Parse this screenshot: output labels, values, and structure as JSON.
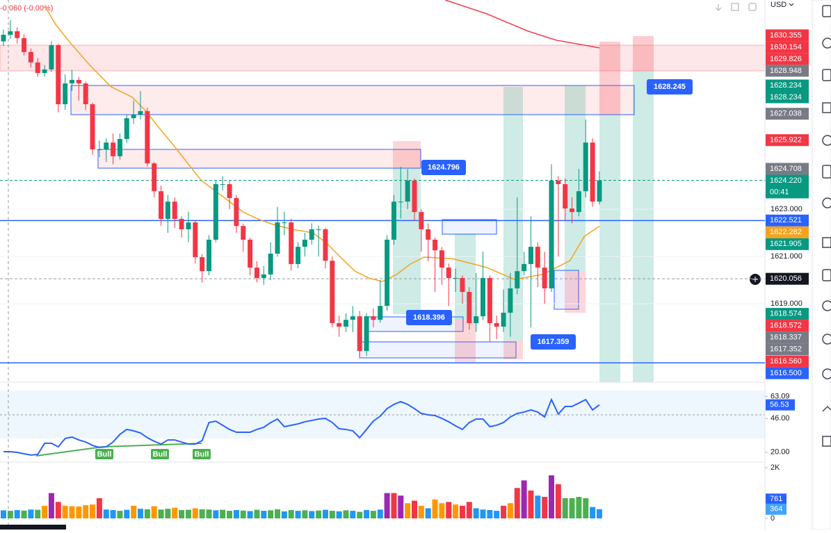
{
  "chart_data": [
    {
      "type": "candlestick",
      "subtitle": "-0.060 (-0.00%)",
      "currency": "USD",
      "ylim": [
        1615.74,
        1631.85
      ],
      "yticks": [
        {
          "value": 1623,
          "label": "1623.000"
        },
        {
          "value": 1621,
          "label": "1621.000"
        },
        {
          "value": 1619,
          "label": "1619.000"
        }
      ],
      "grid": true,
      "up_color": "#089981",
      "down_color": "#f23645",
      "open": [
        1630.1,
        1630.38,
        1630.53,
        1630.24,
        1629.65,
        1629.21,
        1628.76,
        1628.91,
        1629.94,
        1627.44,
        1628.32,
        1628.47,
        1628.32,
        1627.44,
        1625.53,
        1625.53,
        1625.82,
        1625.24,
        1625.97,
        1626.85,
        1627.0,
        1627.15,
        1624.94,
        1623.76,
        1622.59,
        1623.32,
        1622.59,
        1622.15,
        1622.44,
        1620.97,
        1620.38,
        1621.71,
        1624.06,
        1624.06,
        1623.47,
        1622.29,
        1621.71,
        1620.53,
        1620.09,
        1620.24,
        1621.12,
        1622.44,
        1622.44,
        1620.68,
        1621.41,
        1621.71,
        1622.15,
        1622.15,
        1620.82,
        1618.18,
        1618.03,
        1618.32,
        1618.47,
        1617.0,
        1618.47,
        1618.32,
        1618.91,
        1621.71,
        1623.32,
        1623.32,
        1624.21,
        1622.88,
        1622.15,
        1621.71,
        1621.26,
        1620.53,
        1620.09,
        1620.09,
        1619.5,
        1618.18,
        1618.47,
        1620.09,
        1618.18,
        1618.03,
        1618.62,
        1619.65,
        1620.38,
        1620.68,
        1621.41,
        1620.53,
        1619.65,
        1624.21,
        1624.06,
        1623.03,
        1622.88,
        1623.76,
        1625.82,
        1623.32
      ],
      "high": [
        1630.6,
        1631.0,
        1630.7,
        1630.4,
        1629.8,
        1629.4,
        1629.1,
        1630.1,
        1630.0,
        1628.7,
        1628.9,
        1628.6,
        1628.4,
        1627.5,
        1625.9,
        1626.0,
        1626.2,
        1626.2,
        1627.0,
        1627.6,
        1628.0,
        1627.3,
        1625.0,
        1624.0,
        1623.6,
        1623.5,
        1622.7,
        1622.9,
        1622.5,
        1621.1,
        1621.9,
        1624.2,
        1624.4,
        1624.2,
        1623.6,
        1622.4,
        1621.8,
        1620.8,
        1620.6,
        1621.6,
        1623.1,
        1622.9,
        1622.6,
        1621.6,
        1622.0,
        1622.4,
        1622.3,
        1622.2,
        1621.0,
        1618.5,
        1618.6,
        1618.9,
        1618.7,
        1618.6,
        1618.8,
        1620.0,
        1621.9,
        1623.6,
        1624.8,
        1624.7,
        1624.3,
        1623.0,
        1622.4,
        1621.8,
        1621.4,
        1620.7,
        1620.5,
        1620.2,
        1619.7,
        1620.3,
        1621.2,
        1620.2,
        1618.5,
        1619.6,
        1620.3,
        1623.5,
        1621.2,
        1622.7,
        1621.6,
        1621.2,
        1624.9,
        1624.4,
        1624.3,
        1623.5,
        1624.7,
        1626.8,
        1626.0,
        1624.6
      ],
      "low": [
        1629.9,
        1630.2,
        1630.0,
        1629.5,
        1629.0,
        1628.6,
        1628.6,
        1628.8,
        1627.1,
        1627.2,
        1628.0,
        1627.6,
        1627.2,
        1625.3,
        1625.2,
        1625.0,
        1624.9,
        1625.1,
        1625.8,
        1626.6,
        1626.8,
        1624.8,
        1623.5,
        1622.3,
        1622.0,
        1622.2,
        1621.8,
        1621.6,
        1620.7,
        1619.9,
        1620.2,
        1621.6,
        1623.8,
        1623.0,
        1622.0,
        1621.2,
        1620.2,
        1619.9,
        1619.8,
        1620.0,
        1621.0,
        1621.9,
        1620.4,
        1620.5,
        1621.0,
        1621.5,
        1621.0,
        1620.5,
        1618.0,
        1617.6,
        1617.8,
        1617.8,
        1616.7,
        1616.8,
        1618.0,
        1618.2,
        1618.7,
        1621.5,
        1622.6,
        1623.0,
        1622.5,
        1621.2,
        1620.8,
        1619.5,
        1619.8,
        1618.9,
        1619.5,
        1619.0,
        1617.9,
        1617.8,
        1618.3,
        1617.4,
        1617.5,
        1617.8,
        1617.6,
        1619.4,
        1620.2,
        1618.0,
        1619.7,
        1619.0,
        1619.5,
        1621.0,
        1622.5,
        1622.4,
        1622.7,
        1623.5,
        1623.1,
        1623.2
      ],
      "close": [
        1630.38,
        1630.53,
        1630.24,
        1629.65,
        1629.21,
        1628.76,
        1628.91,
        1629.94,
        1627.44,
        1628.32,
        1628.47,
        1628.32,
        1627.44,
        1625.53,
        1625.53,
        1625.82,
        1625.24,
        1625.97,
        1626.85,
        1627.0,
        1627.15,
        1624.94,
        1623.76,
        1622.59,
        1623.32,
        1622.59,
        1622.15,
        1622.44,
        1620.97,
        1620.38,
        1621.71,
        1624.06,
        1624.06,
        1623.47,
        1622.29,
        1621.71,
        1620.53,
        1620.09,
        1620.24,
        1621.12,
        1622.44,
        1622.44,
        1620.68,
        1621.41,
        1621.71,
        1622.15,
        1622.15,
        1620.82,
        1618.18,
        1618.03,
        1618.32,
        1618.47,
        1617.0,
        1618.47,
        1618.32,
        1618.91,
        1621.71,
        1623.32,
        1623.32,
        1624.21,
        1622.88,
        1622.15,
        1621.71,
        1621.26,
        1620.53,
        1620.09,
        1620.09,
        1619.5,
        1618.18,
        1618.47,
        1620.09,
        1618.18,
        1618.03,
        1618.62,
        1619.65,
        1620.38,
        1620.68,
        1621.41,
        1620.53,
        1619.65,
        1624.21,
        1624.06,
        1623.03,
        1622.88,
        1623.76,
        1625.82,
        1623.32,
        1624.22
      ],
      "overlays": [
        {
          "color": "#f7a21b",
          "x": [
            6.1,
            7.6,
            9.6,
            12.7,
            15.7,
            18.8,
            20.8,
            22.8,
            24.9,
            26.9,
            28.9,
            31.0,
            33.0,
            35.0,
            37.1,
            39.1,
            42.1,
            45.2,
            47.2,
            49.2,
            51.3,
            53.3,
            55.3,
            57.4,
            59.4,
            61.4,
            65.5,
            70.6,
            74.6,
            78.7,
            80.7,
            82.7,
            84.8,
            87
          ],
          "values": [
            1631.56,
            1630.82,
            1630.09,
            1629.06,
            1628.18,
            1627.74,
            1627.15,
            1626.41,
            1625.68,
            1624.94,
            1624.21,
            1623.76,
            1623.32,
            1622.88,
            1622.59,
            1622.38,
            1622.15,
            1622.0,
            1621.56,
            1620.97,
            1620.38,
            1620.09,
            1619.94,
            1620.24,
            1620.68,
            1620.97,
            1620.91,
            1620.53,
            1620.03,
            1620.24,
            1620.53,
            1620.82,
            1621.85,
            1622.282
          ]
        },
        {
          "color": "#f23645",
          "x": [
            64.5,
            70.6,
            76.6,
            80.7,
            87
          ],
          "values": [
            1631.85,
            1631.26,
            1630.53,
            1630.15,
            1629.826
          ]
        }
      ],
      "annotations": [
        {
          "value": 1628.245
        },
        {
          "value": 1624.796
        },
        {
          "value": 1618.396
        },
        {
          "value": 1617.359
        }
      ],
      "badges": [
        {
          "value": 1630.355,
          "color": "#f23645"
        },
        {
          "value": 1630.154,
          "color": "#f23645"
        },
        {
          "value": 1629.826,
          "color": "#f23645"
        },
        {
          "value": 1628.948,
          "color": "#787b86"
        },
        {
          "value": 1628.234,
          "color": "#089981"
        },
        {
          "value": 1628.234,
          "color": "#089981"
        },
        {
          "value": 1627.038,
          "color": "#787b86"
        },
        {
          "value": 1625.922,
          "color": "#f23645"
        },
        {
          "value": 1624.708,
          "color": "#787b86"
        },
        {
          "value": 1624.22,
          "label": "1624.220",
          "sub": "00:41",
          "color": "#089981",
          "line": "dotted"
        },
        {
          "value": 1622.521,
          "color": "#2962ff",
          "line": "solid"
        },
        {
          "value": 1622.282,
          "color": "#f7a21b"
        },
        {
          "value": 1621.905,
          "color": "#089981"
        },
        {
          "value": 1620.056,
          "color": "#131722",
          "line": "dashed"
        },
        {
          "value": 1618.574,
          "color": "#089981"
        },
        {
          "value": 1618.572,
          "color": "#f23645"
        },
        {
          "value": 1618.337,
          "color": "#787b86"
        },
        {
          "value": 1617.352,
          "color": "#787b86"
        },
        {
          "value": 1616.56,
          "label": "1616.560",
          "color": "#f23645"
        },
        {
          "value": 1616.5,
          "label": "1616.500",
          "color": "#2962ff",
          "line": "solid"
        }
      ]
    },
    {
      "type": "line",
      "ylim": [
        14,
        74
      ],
      "yticks": [
        63.09,
        {
          "value": 46,
          "label": "46.00"
        },
        {
          "value": 20,
          "label": "20.00"
        }
      ],
      "color": "#2962ff",
      "values": [
        20.4,
        20.4,
        19.9,
        18.8,
        17.8,
        18.3,
        26.9,
        26.9,
        24.2,
        30.6,
        31.7,
        29.5,
        27.9,
        25.3,
        23.7,
        24.2,
        27.9,
        33.8,
        37.6,
        36.5,
        34.9,
        31.2,
        28.5,
        26.3,
        29.5,
        29.5,
        27.9,
        26.3,
        26.3,
        29.0,
        42.9,
        44.0,
        40.8,
        37.6,
        35.4,
        35.4,
        35.4,
        37.6,
        39.2,
        42.9,
        45.6,
        39.7,
        40.8,
        41.9,
        43.5,
        44.5,
        45.6,
        46.1,
        42.9,
        38.1,
        37.6,
        36.5,
        31.2,
        37.6,
        44.0,
        47.8,
        53.6,
        56.9,
        59.0,
        56.9,
        53.6,
        49.9,
        48.8,
        48.3,
        46.1,
        43.5,
        40.3,
        37.6,
        42.9,
        45.6,
        45.6,
        39.7,
        40.8,
        42.9,
        47.2,
        49.9,
        51.0,
        52.6,
        51.0,
        47.2,
        60.6,
        49.4,
        55.3,
        55.3,
        57.9,
        60.6,
        52.6,
        56.53
      ],
      "annotations": [
        "Bull",
        "Bull",
        "Bull"
      ],
      "badges": [
        {
          "value": 56.53,
          "color": "#2962ff"
        }
      ]
    },
    {
      "type": "bar",
      "ylim": [
        0,
        2140
      ],
      "yticks": [
        {
          "value": 2000,
          "label": "2K"
        },
        0
      ],
      "values": [
        320,
        300,
        330,
        310,
        350,
        340,
        500,
        1000,
        650,
        500,
        480,
        470,
        520,
        550,
        800,
        350,
        330,
        300,
        340,
        500,
        380,
        360,
        480,
        350,
        380,
        420,
        330,
        340,
        400,
        360,
        350,
        320,
        340,
        300,
        330,
        310,
        290,
        340,
        300,
        320,
        360,
        280,
        330,
        300,
        320,
        290,
        310,
        340,
        300,
        280,
        320,
        300,
        260,
        330,
        300,
        350,
        1000,
        1000,
        900,
        600,
        700,
        500,
        400,
        750,
        600,
        650,
        550,
        500,
        650,
        400,
        350,
        330,
        300,
        500,
        600,
        1200,
        1500,
        1100,
        900,
        850,
        1700,
        1350,
        800,
        800,
        850,
        800,
        450,
        364
      ],
      "colors": [
        "#2196f3",
        "#4caf50",
        "#2196f3",
        "#4caf50",
        "#2196f3",
        "#4caf50",
        "#ff9800",
        "#9c27b0",
        "#f23645",
        "#ff9800",
        "#ff9800",
        "#ff9800",
        "#ff9800",
        "#ff9800",
        "#f23645",
        "#2196f3",
        "#2196f3",
        "#4caf50",
        "#2196f3",
        "#ff9800",
        "#2196f3",
        "#4caf50",
        "#ff9800",
        "#4caf50",
        "#4caf50",
        "#ff9800",
        "#4caf50",
        "#4caf50",
        "#ff9800",
        "#4caf50",
        "#4caf50",
        "#2196f3",
        "#4caf50",
        "#4caf50",
        "#2196f3",
        "#4caf50",
        "#2196f3",
        "#4caf50",
        "#2196f3",
        "#4caf50",
        "#4caf50",
        "#2196f3",
        "#4caf50",
        "#2196f3",
        "#4caf50",
        "#2196f3",
        "#4caf50",
        "#2196f3",
        "#4caf50",
        "#2196f3",
        "#4caf50",
        "#2196f3",
        "#4caf50",
        "#2196f3",
        "#4caf50",
        "#2196f3",
        "#9c27b0",
        "#f23645",
        "#9c27b0",
        "#ff9800",
        "#f23645",
        "#ff9800",
        "#2196f3",
        "#ff9800",
        "#ff9800",
        "#f23645",
        "#ff9800",
        "#f23645",
        "#f23645",
        "#2196f3",
        "#2196f3",
        "#2196f3",
        "#2196f3",
        "#f23645",
        "#ff9800",
        "#f23645",
        "#9c27b0",
        "#f23645",
        "#2196f3",
        "#f23645",
        "#9c27b0",
        "#f23645",
        "#4caf50",
        "#4caf50",
        "#4caf50",
        "#4caf50",
        "#2196f3",
        "#2196f3"
      ],
      "badges": [
        {
          "value": 761,
          "color": "#2962ff"
        },
        {
          "value": 364,
          "color": "#42a5f5"
        }
      ]
    }
  ]
}
